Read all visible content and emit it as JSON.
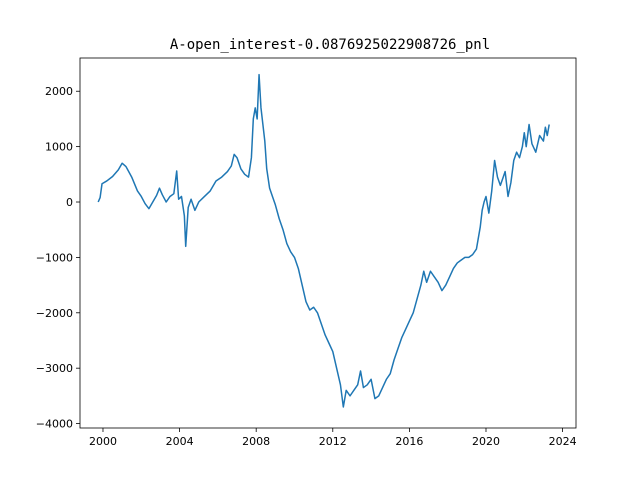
{
  "chart_data": {
    "type": "line",
    "title": "A-open_interest-0.0876925022908726_pnl",
    "xlabel": "",
    "ylabel": "",
    "x_tick_labels": [
      "2000",
      "2004",
      "2008",
      "2012",
      "2016",
      "2020",
      "2024"
    ],
    "y_tick_labels": [
      "−4000",
      "−3000",
      "−2000",
      "−1000",
      "0",
      "1000",
      "2000"
    ],
    "xlim": [
      1998.8,
      2024.7
    ],
    "ylim": [
      -4080,
      2600
    ],
    "grid": false,
    "legend": "none",
    "line_color": "#1f77b4",
    "series": [
      {
        "points": [
          [
            1999.75,
            0
          ],
          [
            1999.85,
            80
          ],
          [
            1999.95,
            330
          ],
          [
            2000.2,
            380
          ],
          [
            2000.5,
            460
          ],
          [
            2000.8,
            580
          ],
          [
            2001.0,
            700
          ],
          [
            2001.2,
            640
          ],
          [
            2001.5,
            450
          ],
          [
            2001.8,
            200
          ],
          [
            2002.0,
            100
          ],
          [
            2002.2,
            -30
          ],
          [
            2002.4,
            -120
          ],
          [
            2002.6,
            0
          ],
          [
            2002.8,
            120
          ],
          [
            2002.95,
            250
          ],
          [
            2003.1,
            130
          ],
          [
            2003.3,
            0
          ],
          [
            2003.5,
            100
          ],
          [
            2003.7,
            150
          ],
          [
            2003.85,
            560
          ],
          [
            2003.95,
            50
          ],
          [
            2004.1,
            100
          ],
          [
            2004.25,
            -250
          ],
          [
            2004.32,
            -800
          ],
          [
            2004.45,
            -100
          ],
          [
            2004.6,
            50
          ],
          [
            2004.8,
            -150
          ],
          [
            2005.0,
            0
          ],
          [
            2005.3,
            100
          ],
          [
            2005.6,
            200
          ],
          [
            2005.9,
            380
          ],
          [
            2006.2,
            450
          ],
          [
            2006.5,
            550
          ],
          [
            2006.7,
            650
          ],
          [
            2006.85,
            860
          ],
          [
            2007.0,
            800
          ],
          [
            2007.2,
            600
          ],
          [
            2007.4,
            500
          ],
          [
            2007.6,
            450
          ],
          [
            2007.75,
            800
          ],
          [
            2007.85,
            1500
          ],
          [
            2007.95,
            1700
          ],
          [
            2008.05,
            1500
          ],
          [
            2008.15,
            2300
          ],
          [
            2008.25,
            1700
          ],
          [
            2008.35,
            1400
          ],
          [
            2008.45,
            1100
          ],
          [
            2008.55,
            600
          ],
          [
            2008.7,
            250
          ],
          [
            2008.85,
            100
          ],
          [
            2009.0,
            -50
          ],
          [
            2009.2,
            -300
          ],
          [
            2009.4,
            -500
          ],
          [
            2009.6,
            -750
          ],
          [
            2009.8,
            -900
          ],
          [
            2010.0,
            -1000
          ],
          [
            2010.2,
            -1200
          ],
          [
            2010.4,
            -1500
          ],
          [
            2010.6,
            -1800
          ],
          [
            2010.8,
            -1950
          ],
          [
            2011.0,
            -1900
          ],
          [
            2011.2,
            -2000
          ],
          [
            2011.4,
            -2200
          ],
          [
            2011.6,
            -2400
          ],
          [
            2011.8,
            -2550
          ],
          [
            2012.0,
            -2700
          ],
          [
            2012.2,
            -3000
          ],
          [
            2012.4,
            -3300
          ],
          [
            2012.55,
            -3700
          ],
          [
            2012.7,
            -3400
          ],
          [
            2012.9,
            -3500
          ],
          [
            2013.1,
            -3400
          ],
          [
            2013.3,
            -3300
          ],
          [
            2013.45,
            -3050
          ],
          [
            2013.6,
            -3350
          ],
          [
            2013.8,
            -3300
          ],
          [
            2014.0,
            -3200
          ],
          [
            2014.2,
            -3550
          ],
          [
            2014.4,
            -3500
          ],
          [
            2014.6,
            -3350
          ],
          [
            2014.8,
            -3200
          ],
          [
            2015.0,
            -3100
          ],
          [
            2015.2,
            -2850
          ],
          [
            2015.4,
            -2650
          ],
          [
            2015.6,
            -2450
          ],
          [
            2015.8,
            -2300
          ],
          [
            2016.0,
            -2150
          ],
          [
            2016.2,
            -2000
          ],
          [
            2016.4,
            -1750
          ],
          [
            2016.6,
            -1500
          ],
          [
            2016.75,
            -1250
          ],
          [
            2016.9,
            -1450
          ],
          [
            2017.1,
            -1250
          ],
          [
            2017.3,
            -1350
          ],
          [
            2017.5,
            -1450
          ],
          [
            2017.7,
            -1600
          ],
          [
            2017.9,
            -1500
          ],
          [
            2018.1,
            -1350
          ],
          [
            2018.3,
            -1200
          ],
          [
            2018.5,
            -1100
          ],
          [
            2018.7,
            -1050
          ],
          [
            2018.9,
            -1000
          ],
          [
            2019.1,
            -1000
          ],
          [
            2019.3,
            -950
          ],
          [
            2019.5,
            -850
          ],
          [
            2019.7,
            -450
          ],
          [
            2019.8,
            -150
          ],
          [
            2019.9,
            0
          ],
          [
            2020.0,
            100
          ],
          [
            2020.15,
            -200
          ],
          [
            2020.3,
            200
          ],
          [
            2020.45,
            750
          ],
          [
            2020.6,
            450
          ],
          [
            2020.75,
            300
          ],
          [
            2020.9,
            450
          ],
          [
            2021.0,
            550
          ],
          [
            2021.15,
            100
          ],
          [
            2021.3,
            350
          ],
          [
            2021.45,
            750
          ],
          [
            2021.6,
            900
          ],
          [
            2021.75,
            800
          ],
          [
            2021.9,
            1000
          ],
          [
            2022.0,
            1250
          ],
          [
            2022.1,
            1000
          ],
          [
            2022.25,
            1400
          ],
          [
            2022.4,
            1050
          ],
          [
            2022.6,
            900
          ],
          [
            2022.8,
            1200
          ],
          [
            2023.0,
            1100
          ],
          [
            2023.1,
            1350
          ],
          [
            2023.2,
            1200
          ],
          [
            2023.3,
            1400
          ]
        ]
      }
    ]
  }
}
